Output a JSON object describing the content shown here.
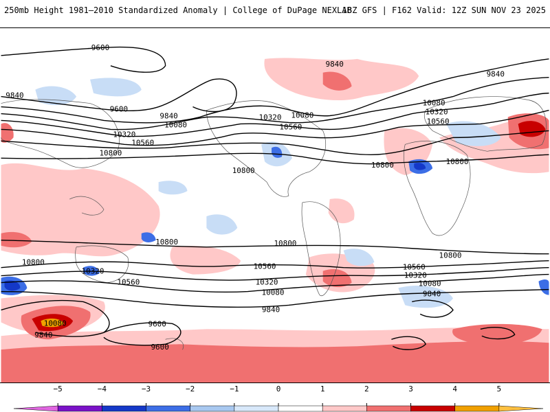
{
  "header": {
    "left": "250mb Height 1981–2010 Standardized Anomaly | College of DuPage NEXLAB",
    "right": "18Z GFS | F162 Valid: 12Z SUN NOV 23 2025"
  },
  "colorbar": {
    "labels": [
      "−5",
      "−4",
      "−3",
      "−2",
      "−1",
      "0",
      "1",
      "2",
      "3",
      "4",
      "5"
    ],
    "colors": [
      "#e066e0",
      "#7a12c8",
      "#1438c8",
      "#3c6ee6",
      "#a8c8f0",
      "#d8e8fa",
      "#ffffff",
      "#ffc8c8",
      "#f07070",
      "#c80000",
      "#f0a000",
      "#ffc040"
    ]
  },
  "contours": {
    "labels": [
      "9600",
      "9840",
      "9600",
      "9840",
      "10080",
      "10320",
      "10560",
      "10800",
      "10080",
      "10320",
      "10560",
      "9840",
      "10080",
      "10320",
      "10560",
      "9840",
      "10800",
      "10800",
      "10800",
      "10800",
      "10800",
      "10800",
      "10560",
      "10320",
      "10080",
      "9840",
      "10560",
      "10320",
      "10080",
      "9840",
      "10800",
      "10320",
      "10560",
      "10080",
      "9840",
      "9600",
      "9600"
    ]
  }
}
